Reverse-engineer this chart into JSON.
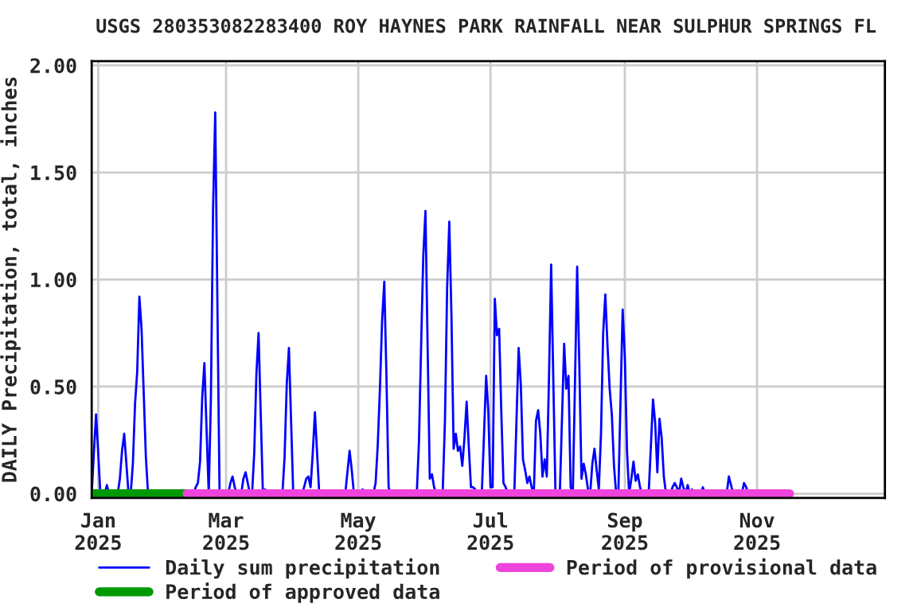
{
  "chart_data": {
    "type": "line",
    "title": "USGS 280353082283400 ROY HAYNES PARK RAINFALL NEAR SULPHUR SPRINGS FL",
    "ylabel": "DAILY Precipitation, total, inches",
    "x": [
      "2024-12-29",
      "2024-12-30",
      "2024-12-31",
      "2025-01-01",
      "2025-01-02",
      "2025-01-04",
      "2025-01-05",
      "2025-01-06",
      "2025-01-10",
      "2025-01-11",
      "2025-01-12",
      "2025-01-13",
      "2025-01-14",
      "2025-01-15",
      "2025-01-16",
      "2025-01-17",
      "2025-01-18",
      "2025-01-19",
      "2025-01-20",
      "2025-01-21",
      "2025-01-22",
      "2025-01-23",
      "2025-01-24",
      "2025-02-14",
      "2025-02-15",
      "2025-02-16",
      "2025-02-17",
      "2025-02-18",
      "2025-02-19",
      "2025-02-20",
      "2025-02-21",
      "2025-02-22",
      "2025-02-23",
      "2025-02-24",
      "2025-02-25",
      "2025-02-26",
      "2025-03-02",
      "2025-03-03",
      "2025-03-04",
      "2025-03-05",
      "2025-03-06",
      "2025-03-08",
      "2025-03-09",
      "2025-03-10",
      "2025-03-11",
      "2025-03-12",
      "2025-03-13",
      "2025-03-14",
      "2025-03-15",
      "2025-03-16",
      "2025-03-17",
      "2025-03-18",
      "2025-03-19",
      "2025-03-20",
      "2025-03-27",
      "2025-03-28",
      "2025-03-29",
      "2025-03-30",
      "2025-03-31",
      "2025-04-01",
      "2025-04-05",
      "2025-04-06",
      "2025-04-07",
      "2025-04-08",
      "2025-04-09",
      "2025-04-10",
      "2025-04-11",
      "2025-04-12",
      "2025-04-13",
      "2025-04-25",
      "2025-04-26",
      "2025-04-27",
      "2025-04-28",
      "2025-04-29",
      "2025-05-02",
      "2025-05-03",
      "2025-05-04",
      "2025-05-08",
      "2025-05-09",
      "2025-05-10",
      "2025-05-11",
      "2025-05-12",
      "2025-05-13",
      "2025-05-14",
      "2025-05-15",
      "2025-05-16",
      "2025-05-28",
      "2025-05-29",
      "2025-05-30",
      "2025-05-31",
      "2025-06-01",
      "2025-06-02",
      "2025-06-03",
      "2025-06-04",
      "2025-06-05",
      "2025-06-06",
      "2025-06-08",
      "2025-06-09",
      "2025-06-10",
      "2025-06-11",
      "2025-06-12",
      "2025-06-13",
      "2025-06-14",
      "2025-06-15",
      "2025-06-16",
      "2025-06-17",
      "2025-06-18",
      "2025-06-19",
      "2025-06-20",
      "2025-06-21",
      "2025-06-22",
      "2025-06-23",
      "2025-06-24",
      "2025-06-25",
      "2025-06-27",
      "2025-06-28",
      "2025-06-29",
      "2025-06-30",
      "2025-07-01",
      "2025-07-02",
      "2025-07-03",
      "2025-07-04",
      "2025-07-05",
      "2025-07-06",
      "2025-07-07",
      "2025-07-08",
      "2025-07-09",
      "2025-07-12",
      "2025-07-13",
      "2025-07-14",
      "2025-07-15",
      "2025-07-16",
      "2025-07-17",
      "2025-07-18",
      "2025-07-19",
      "2025-07-20",
      "2025-07-21",
      "2025-07-22",
      "2025-07-23",
      "2025-07-24",
      "2025-07-25",
      "2025-07-26",
      "2025-07-27",
      "2025-07-28",
      "2025-07-29",
      "2025-07-30",
      "2025-07-31",
      "2025-08-02",
      "2025-08-03",
      "2025-08-04",
      "2025-08-05",
      "2025-08-06",
      "2025-08-07",
      "2025-08-08",
      "2025-08-09",
      "2025-08-10",
      "2025-08-11",
      "2025-08-12",
      "2025-08-13",
      "2025-08-14",
      "2025-08-15",
      "2025-08-16",
      "2025-08-17",
      "2025-08-18",
      "2025-08-19",
      "2025-08-20",
      "2025-08-21",
      "2025-08-22",
      "2025-08-23",
      "2025-08-24",
      "2025-08-25",
      "2025-08-26",
      "2025-08-27",
      "2025-08-28",
      "2025-08-29",
      "2025-08-30",
      "2025-08-31",
      "2025-09-01",
      "2025-09-02",
      "2025-09-03",
      "2025-09-04",
      "2025-09-05",
      "2025-09-06",
      "2025-09-07",
      "2025-09-08",
      "2025-09-09",
      "2025-09-12",
      "2025-09-13",
      "2025-09-14",
      "2025-09-15",
      "2025-09-16",
      "2025-09-17",
      "2025-09-18",
      "2025-09-19",
      "2025-09-20",
      "2025-09-22",
      "2025-09-23",
      "2025-09-24",
      "2025-09-25",
      "2025-09-26",
      "2025-09-27",
      "2025-09-28",
      "2025-09-29",
      "2025-09-30",
      "2025-10-01",
      "2025-10-02",
      "2025-10-03",
      "2025-10-06",
      "2025-10-07",
      "2025-10-08",
      "2025-10-18",
      "2025-10-19",
      "2025-10-20",
      "2025-10-21",
      "2025-10-25",
      "2025-10-26",
      "2025-10-27",
      "2025-10-28",
      "2025-11-16"
    ],
    "series": [
      {
        "name": "Daily sum precipitation",
        "color": "#0000ff",
        "values": [
          0,
          0.19,
          0.37,
          0.19,
          0,
          0,
          0.04,
          0,
          0,
          0.07,
          0.2,
          0.28,
          0.14,
          0,
          0,
          0.14,
          0.42,
          0.57,
          0.92,
          0.77,
          0.47,
          0.17,
          0,
          0,
          0.03,
          0.05,
          0.15,
          0.45,
          0.61,
          0.3,
          0,
          0.44,
          1.33,
          1.78,
          0.89,
          0,
          0,
          0.05,
          0.08,
          0.03,
          0,
          0,
          0.07,
          0.1,
          0.05,
          0,
          0,
          0.19,
          0.56,
          0.75,
          0.37,
          0,
          0.02,
          0,
          0,
          0.17,
          0.51,
          0.68,
          0.34,
          0,
          0,
          0.03,
          0.07,
          0.08,
          0.03,
          0.19,
          0.38,
          0.19,
          0,
          0,
          0.1,
          0.2,
          0.11,
          0,
          0,
          0.02,
          0,
          0,
          0.05,
          0.23,
          0.49,
          0.81,
          0.99,
          0.55,
          0.03,
          0,
          0,
          0.24,
          0.69,
          1.11,
          1.32,
          0.69,
          0.07,
          0.09,
          0.03,
          0,
          0,
          0.02,
          0.34,
          0.96,
          1.27,
          0.83,
          0.21,
          0.28,
          0.2,
          0.22,
          0.13,
          0.26,
          0.43,
          0.22,
          0.03,
          0.03,
          0.02,
          0,
          0,
          0.27,
          0.55,
          0.39,
          0.03,
          0.03,
          0.91,
          0.74,
          0.77,
          0.38,
          0.05,
          0.03,
          0,
          0,
          0.34,
          0.68,
          0.51,
          0.16,
          0.11,
          0.05,
          0.08,
          0.03,
          0,
          0.34,
          0.39,
          0.28,
          0.08,
          0.16,
          0.08,
          0.54,
          1.07,
          0.53,
          0,
          0,
          0.35,
          0.7,
          0.49,
          0.55,
          0.03,
          0,
          0.52,
          1.06,
          0.6,
          0.07,
          0.14,
          0.09,
          0.02,
          0,
          0.14,
          0.21,
          0.11,
          0.02,
          0.28,
          0.75,
          0.93,
          0.69,
          0.49,
          0.37,
          0.13,
          0,
          0,
          0.43,
          0.86,
          0.64,
          0.2,
          0,
          0.07,
          0.15,
          0.06,
          0.09,
          0.03,
          0,
          0,
          0.22,
          0.44,
          0.33,
          0.1,
          0.35,
          0.26,
          0.08,
          0,
          0,
          0.03,
          0.05,
          0.03,
          0,
          0.07,
          0.03,
          0,
          0.04,
          0,
          0.02,
          0,
          0,
          0.03,
          0,
          0,
          0.08,
          0.04,
          0,
          0,
          0.05,
          0.03,
          0,
          0
        ]
      },
      {
        "name": "Period of approved data",
        "color": "#009900",
        "x": [
          "2024-12-29",
          "2025-02-11"
        ],
        "values": [
          0,
          0
        ]
      },
      {
        "name": "Period of provisional data",
        "color": "#ee44dd",
        "x": [
          "2025-02-11",
          "2025-11-16"
        ],
        "values": [
          0,
          0
        ]
      }
    ],
    "xlim": [
      "2024-12-29",
      "2025-12-30"
    ],
    "xticks": [
      {
        "value": "2025-01-01",
        "label": "Jan\n2025"
      },
      {
        "value": "2025-03-01",
        "label": "Mar\n2025"
      },
      {
        "value": "2025-05-01",
        "label": "May\n2025"
      },
      {
        "value": "2025-07-01",
        "label": "Jul\n2025"
      },
      {
        "value": "2025-09-01",
        "label": "Sep\n2025"
      },
      {
        "value": "2025-11-01",
        "label": "Nov\n2025"
      }
    ],
    "ylim": [
      -0.02,
      2.02
    ],
    "yticks": [
      {
        "value": 0,
        "label": "0.00"
      },
      {
        "value": 0.5,
        "label": "0.50"
      },
      {
        "value": 1,
        "label": "1.00"
      },
      {
        "value": 1.5,
        "label": "1.50"
      },
      {
        "value": 2,
        "label": "2.00"
      }
    ],
    "grid": true,
    "legend": "bottom",
    "line_style": "solid"
  }
}
